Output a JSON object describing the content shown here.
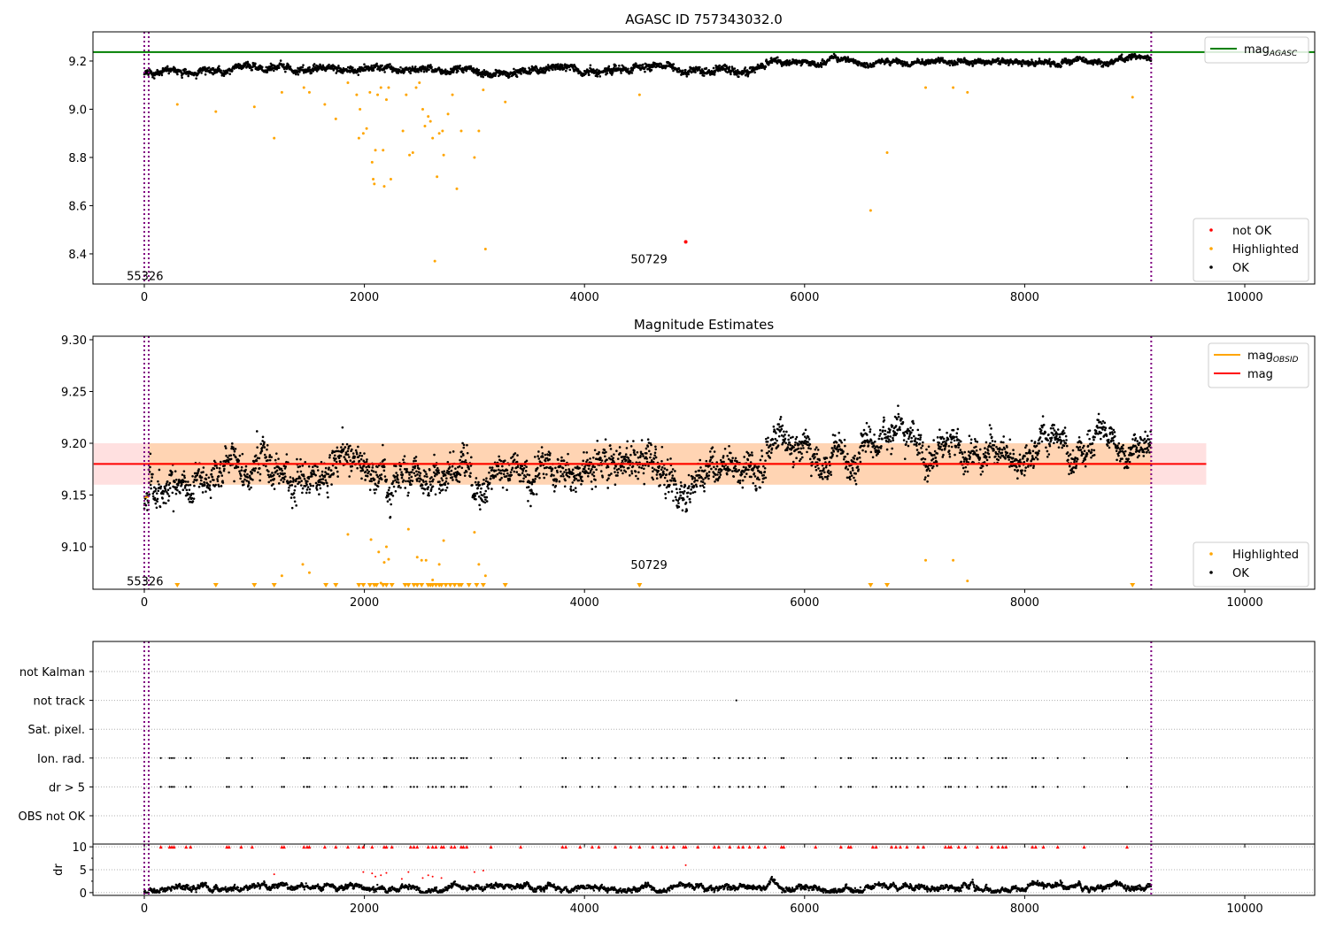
{
  "chart_data": [
    {
      "type": "scatter",
      "title": "AGASC ID 757343032.0",
      "xlim": [
        -467,
        10636
      ],
      "ylim": [
        8.275,
        9.321
      ],
      "xticks": [
        0,
        2000,
        4000,
        6000,
        8000,
        10000
      ],
      "yticks": [
        8.4,
        8.6,
        8.8,
        9.0,
        9.2
      ],
      "ytick_labels": [
        "8.4",
        "8.6",
        "8.8",
        "9.0",
        "9.2"
      ],
      "mag_agasc": 9.237,
      "vlines": [
        0,
        40,
        9150
      ],
      "annotations": [
        {
          "text": "55326",
          "x": -160,
          "y": 8.31
        },
        {
          "text": "50729",
          "x": 4420,
          "y": 8.38
        }
      ],
      "legend_lines": [
        {
          "label": "mag",
          "sub": "AGASC",
          "color": "#008000"
        }
      ],
      "legend_points": [
        {
          "label": "not OK",
          "color": "#ff0000"
        },
        {
          "label": "Highlighted",
          "color": "#ffa500"
        },
        {
          "label": "OK",
          "color": "#000000"
        }
      ],
      "ok_segments": [
        {
          "x": [
            0,
            40
          ],
          "mean": 9.14,
          "sd": 0.01
        },
        {
          "x": [
            40,
            5650
          ],
          "mean": 9.162,
          "sd": 0.01
        },
        {
          "x": [
            5650,
            9150
          ],
          "mean": 9.198,
          "sd": 0.008
        }
      ],
      "not_ok": [
        [
          4920,
          8.45
        ]
      ],
      "highlighted": [
        [
          300,
          9.02
        ],
        [
          650,
          8.99
        ],
        [
          1000,
          9.01
        ],
        [
          1180,
          8.88
        ],
        [
          1250,
          9.07
        ],
        [
          1450,
          9.09
        ],
        [
          1500,
          9.07
        ],
        [
          1640,
          9.02
        ],
        [
          1740,
          8.96
        ],
        [
          1850,
          9.11
        ],
        [
          1930,
          9.06
        ],
        [
          1950,
          8.88
        ],
        [
          1960,
          9.0
        ],
        [
          1990,
          8.9
        ],
        [
          2020,
          8.92
        ],
        [
          2050,
          9.07
        ],
        [
          2070,
          8.78
        ],
        [
          2080,
          8.71
        ],
        [
          2090,
          8.69
        ],
        [
          2100,
          8.83
        ],
        [
          2120,
          9.06
        ],
        [
          2150,
          9.09
        ],
        [
          2170,
          8.83
        ],
        [
          2180,
          8.68
        ],
        [
          2200,
          9.04
        ],
        [
          2220,
          9.09
        ],
        [
          2240,
          8.71
        ],
        [
          2350,
          8.91
        ],
        [
          2380,
          9.06
        ],
        [
          2410,
          8.81
        ],
        [
          2440,
          8.82
        ],
        [
          2470,
          9.09
        ],
        [
          2500,
          9.11
        ],
        [
          2530,
          9.0
        ],
        [
          2550,
          8.93
        ],
        [
          2580,
          8.97
        ],
        [
          2600,
          8.95
        ],
        [
          2620,
          8.88
        ],
        [
          2640,
          8.37
        ],
        [
          2660,
          8.72
        ],
        [
          2680,
          8.9
        ],
        [
          2710,
          8.91
        ],
        [
          2720,
          8.81
        ],
        [
          2760,
          8.98
        ],
        [
          2800,
          9.06
        ],
        [
          2840,
          8.67
        ],
        [
          2880,
          8.91
        ],
        [
          3000,
          8.8
        ],
        [
          3040,
          8.91
        ],
        [
          3080,
          9.08
        ],
        [
          3100,
          8.42
        ],
        [
          3280,
          9.03
        ],
        [
          4500,
          9.06
        ],
        [
          6600,
          8.58
        ],
        [
          6750,
          8.82
        ],
        [
          7100,
          9.09
        ],
        [
          7350,
          9.09
        ],
        [
          7480,
          9.07
        ],
        [
          8980,
          9.05
        ]
      ]
    },
    {
      "type": "scatter",
      "title": "Magnitude Estimates",
      "xlim": [
        -467,
        10636
      ],
      "ylim": [
        9.059,
        9.3034
      ],
      "xticks": [
        0,
        2000,
        4000,
        6000,
        8000,
        10000
      ],
      "yticks": [
        9.1,
        9.15,
        9.2,
        9.25,
        9.3
      ],
      "ytick_labels": [
        "9.10",
        "9.15",
        "9.20",
        "9.25",
        "9.30"
      ],
      "mag": 9.18,
      "mag_band": [
        9.16,
        9.2
      ],
      "mag_band_x": [
        -460,
        9650
      ],
      "mag_obsid": [
        {
          "x": [
            0,
            40
          ],
          "y": 9.148
        },
        {
          "x": [
            40,
            5650
          ],
          "y": 9.18
        },
        {
          "x": [
            5650,
            9150
          ],
          "y": 9.18
        }
      ],
      "obsid_band": [
        9.16,
        9.2
      ],
      "vlines": [
        0,
        40,
        9150
      ],
      "annotations": [
        {
          "text": "55326",
          "x": -160,
          "y": 9.067
        },
        {
          "text": "50729",
          "x": 4420,
          "y": 9.083
        }
      ],
      "legend_lines": [
        {
          "label": "mag",
          "sub": "OBSID",
          "color": "#ffa500"
        },
        {
          "label": "mag",
          "sub": "",
          "color": "#ff0000"
        }
      ],
      "legend_points": [
        {
          "label": "Highlighted",
          "color": "#ffa500"
        },
        {
          "label": "OK",
          "color": "#000000"
        }
      ],
      "ok_segments": [
        {
          "x": [
            0,
            40
          ],
          "mean": 9.142,
          "sd": 0.006
        },
        {
          "x": [
            40,
            5650
          ],
          "mean": 9.167,
          "sd": 0.012
        },
        {
          "x": [
            5650,
            9150
          ],
          "mean": 9.2,
          "sd": 0.01
        }
      ],
      "highlighted": [
        [
          1250,
          9.072
        ],
        [
          1440,
          9.083
        ],
        [
          1500,
          9.075
        ],
        [
          1850,
          9.112
        ],
        [
          2060,
          9.107
        ],
        [
          2130,
          9.095
        ],
        [
          2150,
          9.065
        ],
        [
          2180,
          9.085
        ],
        [
          2200,
          9.1
        ],
        [
          2220,
          9.088
        ],
        [
          2400,
          9.117
        ],
        [
          2480,
          9.09
        ],
        [
          2520,
          9.087
        ],
        [
          2560,
          9.087
        ],
        [
          2620,
          9.068
        ],
        [
          2680,
          9.083
        ],
        [
          2720,
          9.106
        ],
        [
          3000,
          9.114
        ],
        [
          3040,
          9.083
        ],
        [
          3100,
          9.072
        ],
        [
          4500,
          9.063
        ],
        [
          7100,
          9.087
        ],
        [
          7350,
          9.087
        ],
        [
          7480,
          9.067
        ]
      ],
      "clipped_low_x": [
        300,
        650,
        1000,
        1180,
        1650,
        1740,
        1950,
        1990,
        2050,
        2090,
        2110,
        2170,
        2200,
        2250,
        2370,
        2400,
        2450,
        2480,
        2520,
        2580,
        2600,
        2620,
        2650,
        2680,
        2700,
        2740,
        2780,
        2820,
        2860,
        2880,
        2950,
        3020,
        3080,
        3280,
        4500,
        6600,
        6750,
        8980
      ]
    },
    {
      "type": "scatter",
      "categories": [
        "OBS not OK",
        "dr > 5",
        "Ion. rad.",
        "Sat. pixel.",
        "not track",
        "not Kalman"
      ],
      "flag_x": [
        150,
        230,
        250,
        270,
        380,
        420,
        750,
        770,
        880,
        980,
        1250,
        1270,
        1450,
        1480,
        1500,
        1640,
        1740,
        1850,
        1950,
        1990,
        2070,
        2180,
        2200,
        2250,
        2420,
        2450,
        2480,
        2580,
        2620,
        2650,
        2700,
        2720,
        2790,
        2820,
        2880,
        2900,
        2930,
        3150,
        3420,
        3800,
        3830,
        3960,
        4070,
        4130,
        4280,
        4420,
        4500,
        4620,
        4700,
        4750,
        4810,
        4900,
        4920,
        5030,
        5180,
        5220,
        5320,
        5400,
        5440,
        5500,
        5580,
        5640,
        5790,
        5810,
        6100,
        6330,
        6400,
        6420,
        6620,
        6650,
        6790,
        6830,
        6870,
        6930,
        7030,
        7080,
        7280,
        7310,
        7330,
        7400,
        7460,
        7570,
        7700,
        7760,
        7800,
        7830,
        8070,
        8100,
        8170,
        8300,
        8540,
        8930
      ],
      "not_track_x": [
        5380
      ]
    },
    {
      "type": "scatter",
      "ylabel": "dr",
      "ylim": [
        -0.6,
        10.6
      ],
      "yticks": [
        0,
        5,
        10
      ],
      "ytick_labels": [
        "0",
        "5",
        "10"
      ],
      "xticks": [
        0,
        2000,
        4000,
        6000,
        8000,
        10000
      ],
      "dr_clip": 10,
      "dr_mean": 1.0,
      "dr_outliers": [
        [
          1180,
          4.0
        ],
        [
          1990,
          4.5
        ],
        [
          2070,
          4.2
        ],
        [
          2100,
          3.5
        ],
        [
          2150,
          3.8
        ],
        [
          2200,
          4.3
        ],
        [
          2340,
          3.0
        ],
        [
          2400,
          4.5
        ],
        [
          2530,
          3.2
        ],
        [
          2580,
          3.8
        ],
        [
          2620,
          3.5
        ],
        [
          2700,
          3.2
        ],
        [
          3000,
          4.5
        ],
        [
          3080,
          4.8
        ],
        [
          4920,
          6.0
        ]
      ]
    }
  ]
}
